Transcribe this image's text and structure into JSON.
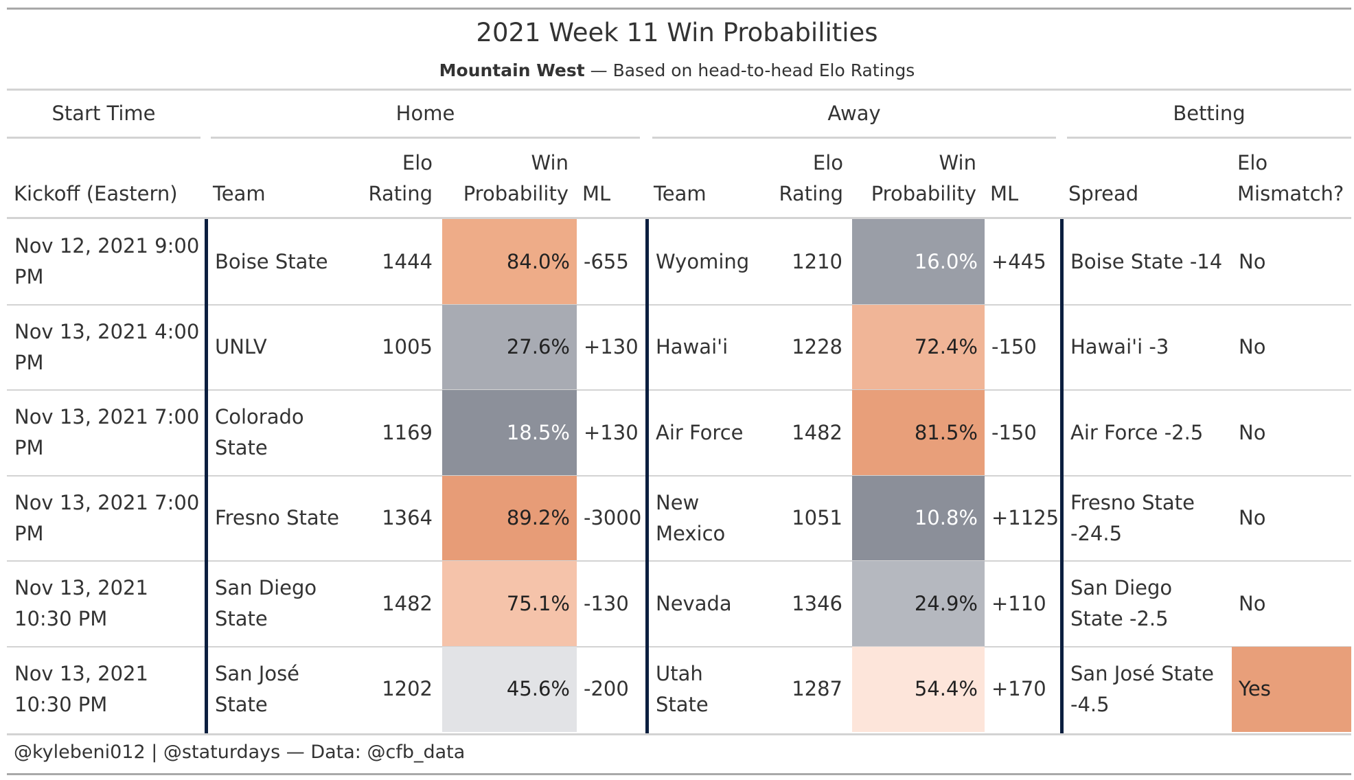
{
  "title": "2021 Week 11 Win Probabilities",
  "subtitle": {
    "conference": "Mountain West",
    "rest": " — Based on head-to-head Elo Ratings"
  },
  "spanners": {
    "start_time": "Start Time",
    "home": "Home",
    "away": "Away",
    "betting": "Betting"
  },
  "columns": {
    "kickoff": "Kickoff (Eastern)",
    "home_team": "Team",
    "home_elo": [
      "Elo",
      "Rating"
    ],
    "home_wp": [
      "Win",
      "Probability"
    ],
    "home_ml": "ML",
    "away_team": "Team",
    "away_elo": [
      "Elo",
      "Rating"
    ],
    "away_wp": [
      "Win",
      "Probability"
    ],
    "away_ml": "ML",
    "spread": "Spread",
    "mismatch": [
      "Elo",
      "Mismatch?"
    ]
  },
  "rows": [
    {
      "kickoff": [
        "Nov 12, 2021 9:00",
        "PM"
      ],
      "home_team": [
        "Boise State"
      ],
      "home_elo": "1444",
      "home_wp": "84.0%",
      "home_ml": "-655",
      "away_team": [
        "Wyoming"
      ],
      "away_elo": "1210",
      "away_wp": "16.0%",
      "away_ml": "+445",
      "spread": [
        "Boise State -14"
      ],
      "mismatch": "No"
    },
    {
      "kickoff": [
        "Nov 13, 2021 4:00",
        "PM"
      ],
      "home_team": [
        "UNLV"
      ],
      "home_elo": "1005",
      "home_wp": "27.6%",
      "home_ml": "+130",
      "away_team": [
        "Hawai'i"
      ],
      "away_elo": "1228",
      "away_wp": "72.4%",
      "away_ml": "-150",
      "spread": [
        "Hawai'i -3"
      ],
      "mismatch": "No"
    },
    {
      "kickoff": [
        "Nov 13, 2021 7:00",
        "PM"
      ],
      "home_team": [
        "Colorado",
        "State"
      ],
      "home_elo": "1169",
      "home_wp": "18.5%",
      "home_ml": "+130",
      "away_team": [
        "Air Force"
      ],
      "away_elo": "1482",
      "away_wp": "81.5%",
      "away_ml": "-150",
      "spread": [
        "Air Force -2.5"
      ],
      "mismatch": "No"
    },
    {
      "kickoff": [
        "Nov 13, 2021 7:00",
        "PM"
      ],
      "home_team": [
        "Fresno State"
      ],
      "home_elo": "1364",
      "home_wp": "89.2%",
      "home_ml": "-3000",
      "away_team": [
        "New",
        "Mexico"
      ],
      "away_elo": "1051",
      "away_wp": "10.8%",
      "away_ml": "+1125",
      "spread": [
        "Fresno State",
        "-24.5"
      ],
      "mismatch": "No"
    },
    {
      "kickoff": [
        "Nov 13, 2021",
        "10:30 PM"
      ],
      "home_team": [
        "San Diego",
        "State"
      ],
      "home_elo": "1482",
      "home_wp": "75.1%",
      "home_ml": "-130",
      "away_team": [
        "Nevada"
      ],
      "away_elo": "1346",
      "away_wp": "24.9%",
      "away_ml": "+110",
      "spread": [
        "San Diego",
        "State -2.5"
      ],
      "mismatch": "No"
    },
    {
      "kickoff": [
        "Nov 13, 2021",
        "10:30 PM"
      ],
      "home_team": [
        "San José",
        "State"
      ],
      "home_elo": "1202",
      "home_wp": "45.6%",
      "home_ml": "-200",
      "away_team": [
        "Utah",
        "State"
      ],
      "away_elo": "1287",
      "away_wp": "54.4%",
      "away_ml": "+170",
      "spread": [
        "San José State",
        "-4.5"
      ],
      "mismatch": "Yes"
    }
  ],
  "colors": {
    "home_wp": [
      "#eeac88",
      "#a8abb3",
      "#8c909a",
      "#e79c77",
      "#f5c3aa",
      "#e2e3e6"
    ],
    "away_wp": [
      "#9a9ea7",
      "#f0b597",
      "#e89f7a",
      "#8b8f99",
      "#b5b8bf",
      "#fde5da"
    ],
    "mismatch_yes": "#e89f7a",
    "light_text": "#ffffff",
    "dark_text": "#222222",
    "separator": "#0c1f3f"
  },
  "footer": "@kylebeni012 | @staturdays — Data: @cfb_data"
}
